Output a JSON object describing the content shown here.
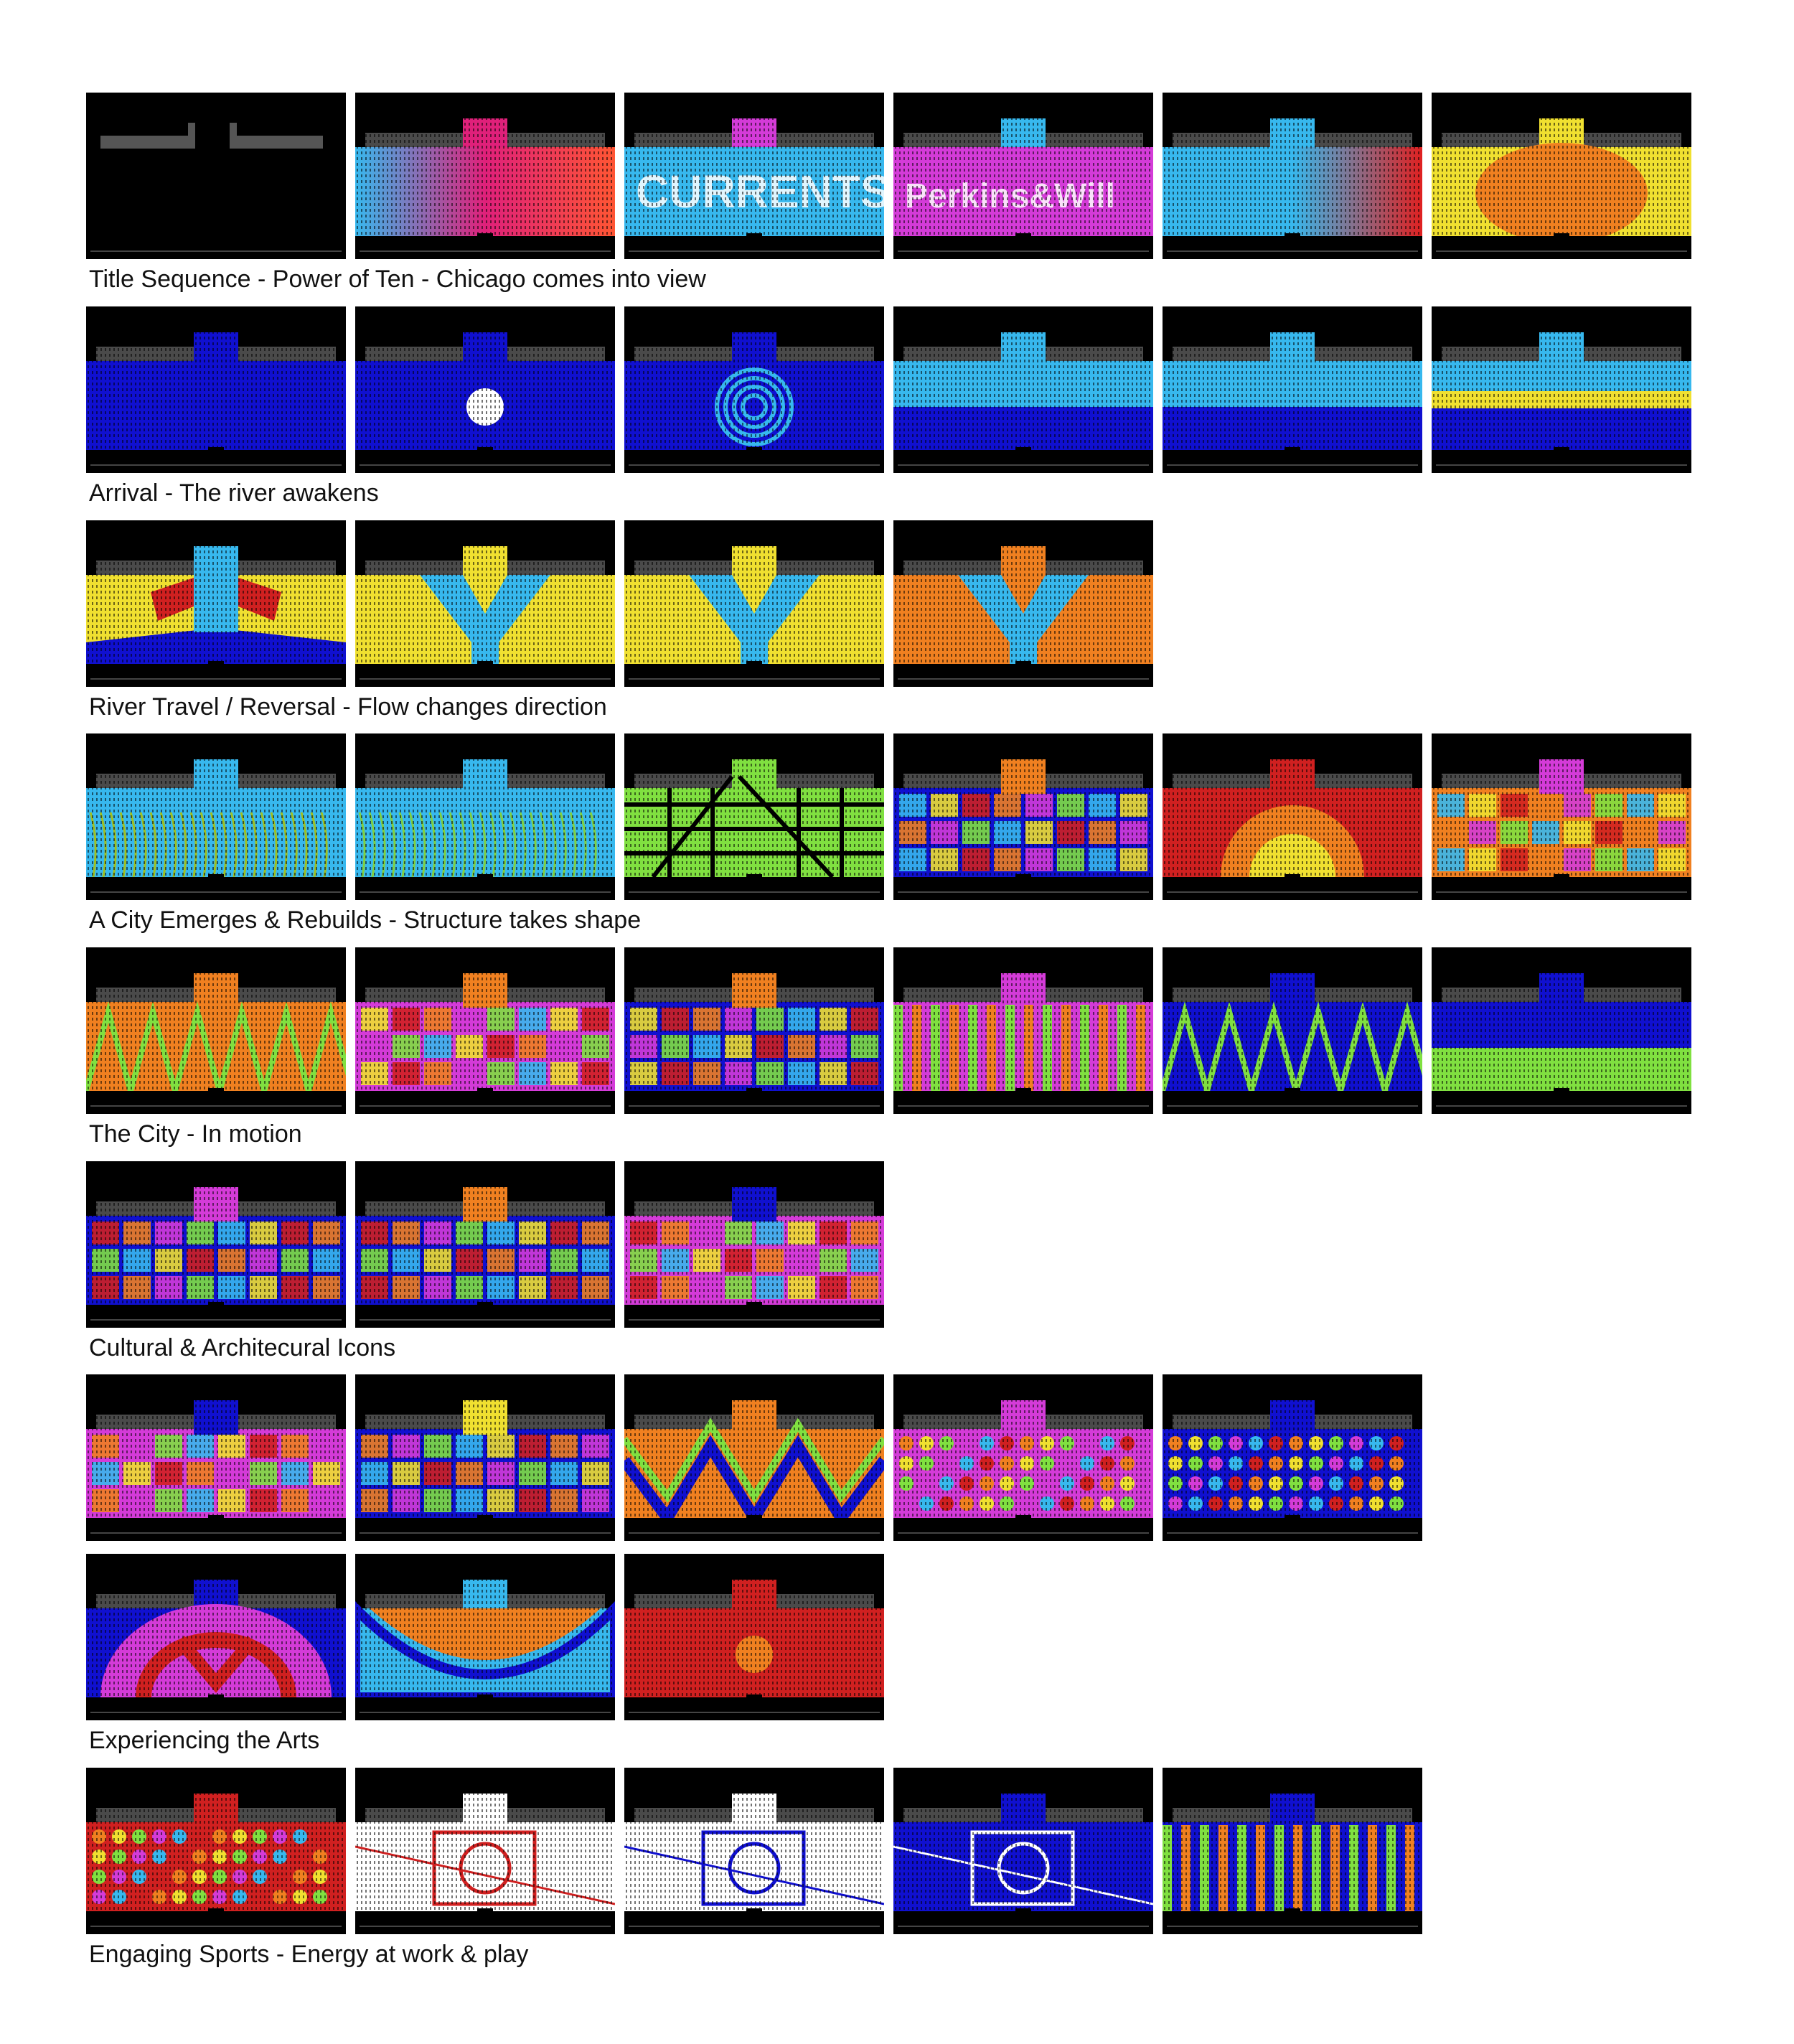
{
  "sections": [
    {
      "caption": "Title Sequence - Power of Ten - Chicago comes into view",
      "frames": [
        {
          "bg": "#000000",
          "accent": "#000000",
          "pattern": "dark"
        },
        {
          "bg": "#ff5533",
          "accent": "#e0207a",
          "pattern": "gradient"
        },
        {
          "bg": "#37b8ee",
          "accent": "#d43bd8",
          "pattern": "text",
          "text": "CURRENTS"
        },
        {
          "bg": "#d43bd8",
          "accent": "#37b8ee",
          "pattern": "text",
          "text": "Perkins&Will"
        },
        {
          "bg": "#e02020",
          "accent": "#37b8ee",
          "pattern": "gradient"
        },
        {
          "bg": "#f0e030",
          "accent": "#f08020",
          "pattern": "blob"
        }
      ]
    },
    {
      "caption": "Arrival - The river awakens",
      "frames": [
        {
          "bg": "#1010d0",
          "accent": "#1010d0",
          "pattern": "plain"
        },
        {
          "bg": "#1010d0",
          "accent": "#ffffff",
          "pattern": "circle"
        },
        {
          "bg": "#1010d0",
          "accent": "#37b8ee",
          "pattern": "rings"
        },
        {
          "bg": "#37b8ee",
          "accent": "#1010d0",
          "pattern": "split"
        },
        {
          "bg": "#37b8ee",
          "accent": "#1010d0",
          "pattern": "split"
        },
        {
          "bg": "#37b8ee",
          "accent": "#f0e030",
          "pattern": "bands"
        }
      ]
    },
    {
      "caption": "River Travel / Reversal - Flow changes direction",
      "frames": [
        {
          "bg": "#f0e030",
          "accent": "#d02020",
          "pattern": "river"
        },
        {
          "bg": "#f0e030",
          "accent": "#37b8ee",
          "pattern": "y"
        },
        {
          "bg": "#f0e030",
          "accent": "#37b8ee",
          "pattern": "y"
        },
        {
          "bg": "#f08020",
          "accent": "#37b8ee",
          "pattern": "y"
        }
      ]
    },
    {
      "caption": "A City Emerges & Rebuilds - Structure takes shape",
      "frames": [
        {
          "bg": "#37b8ee",
          "accent": "#a0c020",
          "pattern": "grass"
        },
        {
          "bg": "#37b8ee",
          "accent": "#80d040",
          "pattern": "grass"
        },
        {
          "bg": "#80e040",
          "accent": "#000000",
          "pattern": "beams"
        },
        {
          "bg": "#1010d0",
          "accent": "#f08020",
          "pattern": "blocks"
        },
        {
          "bg": "#d02020",
          "accent": "#f0e030",
          "pattern": "sun"
        },
        {
          "bg": "#f08020",
          "accent": "#d43bd8",
          "pattern": "blocks"
        }
      ]
    },
    {
      "caption": "The City - In motion",
      "frames": [
        {
          "bg": "#f08020",
          "accent": "#80e040",
          "pattern": "lattice"
        },
        {
          "bg": "#d43bd8",
          "accent": "#f08020",
          "pattern": "blocks"
        },
        {
          "bg": "#1010d0",
          "accent": "#f08020",
          "pattern": "blocks"
        },
        {
          "bg": "#d43bd8",
          "accent": "#f08020",
          "pattern": "stripes"
        },
        {
          "bg": "#1010d0",
          "accent": "#80e040",
          "pattern": "lattice"
        },
        {
          "bg": "#1010d0",
          "accent": "#80e040",
          "pattern": "split"
        }
      ]
    },
    {
      "caption": "Cultural & Architecural Icons",
      "frames": [
        {
          "bg": "#1010d0",
          "accent": "#d43bd8",
          "pattern": "blocks"
        },
        {
          "bg": "#1010d0",
          "accent": "#f08020",
          "pattern": "blocks"
        },
        {
          "bg": "#d43bd8",
          "accent": "#1010d0",
          "pattern": "blocks"
        }
      ]
    },
    {
      "caption": "",
      "frames": [
        {
          "bg": "#d43bd8",
          "accent": "#1010d0",
          "pattern": "blocks"
        },
        {
          "bg": "#1010d0",
          "accent": "#f0e030",
          "pattern": "blocks"
        },
        {
          "bg": "#f08020",
          "accent": "#1010d0",
          "pattern": "zigzag"
        },
        {
          "bg": "#d43bd8",
          "accent": "#37b8ee",
          "pattern": "dots"
        },
        {
          "bg": "#1010d0",
          "accent": "#f08020",
          "pattern": "dots"
        }
      ]
    },
    {
      "caption": "Experiencing the Arts",
      "frames": [
        {
          "bg": "#1010d0",
          "accent": "#d02020",
          "pattern": "arch"
        },
        {
          "bg": "#37b8ee",
          "accent": "#f08020",
          "pattern": "bowl"
        },
        {
          "bg": "#d02020",
          "accent": "#f08020",
          "pattern": "circle"
        }
      ]
    },
    {
      "caption": "Engaging Sports - Energy at work & play",
      "frames": [
        {
          "bg": "#d02020",
          "accent": "#1010d0",
          "pattern": "dots"
        },
        {
          "bg": "#ffffff",
          "accent": "#d02020",
          "pattern": "court"
        },
        {
          "bg": "#ffffff",
          "accent": "#1010d0",
          "pattern": "court"
        },
        {
          "bg": "#1010d0",
          "accent": "#ffffff",
          "pattern": "court"
        },
        {
          "bg": "#1010d0",
          "accent": "#f08020",
          "pattern": "stripes"
        }
      ]
    }
  ]
}
